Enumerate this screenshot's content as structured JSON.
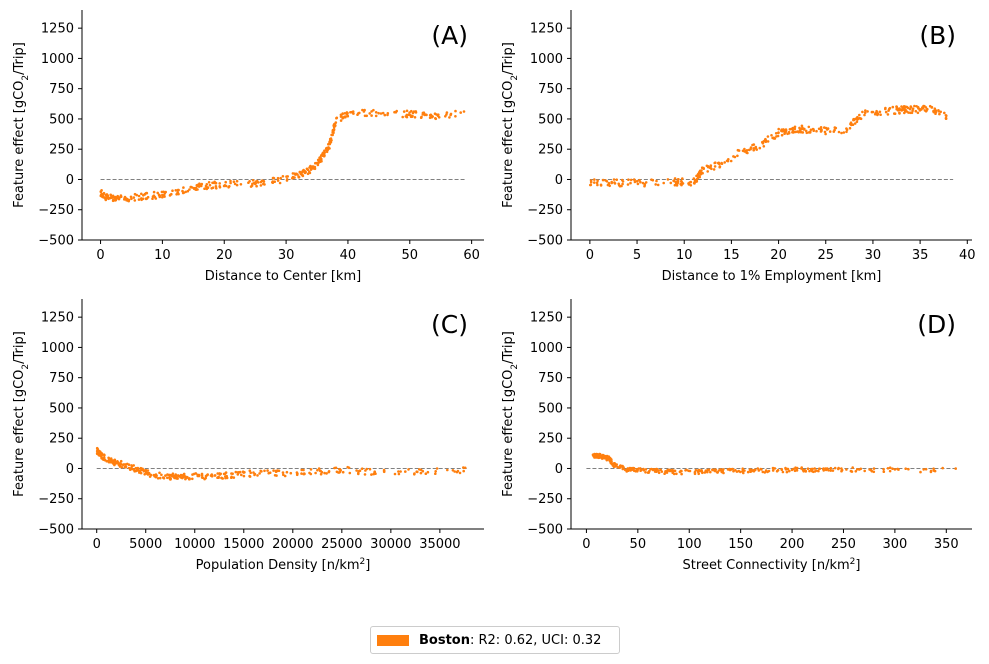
{
  "colors": {
    "series": "#ff7f0e",
    "zero_line": "#808080",
    "axis": "#000000"
  },
  "legend": {
    "city": "Boston",
    "stats": ":  R2: 0.62, UCI: 0.32"
  },
  "chart_data": [
    {
      "type": "scatter",
      "panel": "(A)",
      "xlabel": "Distance to Center [km]",
      "ylabel_parts": [
        "Feature effect [gCO",
        "2",
        "/Trip]"
      ],
      "xlim": [
        -3,
        62
      ],
      "ylim": [
        -500,
        1400
      ],
      "xticks": [
        0,
        10,
        20,
        30,
        40,
        50,
        60
      ],
      "yticks": [
        -500,
        -250,
        0,
        250,
        500,
        750,
        1000,
        1250
      ],
      "zero_line": [
        0,
        59
      ],
      "series": [
        {
          "name": "Boston",
          "trend": [
            [
              0,
              -110
            ],
            [
              1,
              -150
            ],
            [
              3,
              -160
            ],
            [
              6,
              -145
            ],
            [
              10,
              -125
            ],
            [
              13,
              -100
            ],
            [
              16,
              -55
            ],
            [
              20,
              -40
            ],
            [
              25,
              -30
            ],
            [
              28,
              -15
            ],
            [
              31,
              25
            ],
            [
              33,
              55
            ],
            [
              35,
              120
            ],
            [
              36,
              200
            ],
            [
              37,
              280
            ],
            [
              38,
              480
            ],
            [
              40,
              550
            ],
            [
              45,
              545
            ],
            [
              50,
              540
            ],
            [
              54,
              520
            ],
            [
              59,
              555
            ]
          ],
          "count": 420,
          "spread": 28
        }
      ]
    },
    {
      "type": "scatter",
      "panel": "(B)",
      "xlabel": "Distance to 1% Employment [km]",
      "ylabel_parts": [
        "Feature effect [gCO",
        "2",
        "/Trip]"
      ],
      "xlim": [
        -2,
        40.5
      ],
      "ylim": [
        -500,
        1400
      ],
      "xticks": [
        0,
        5,
        10,
        15,
        20,
        25,
        30,
        35,
        40
      ],
      "yticks": [
        -500,
        -250,
        0,
        250,
        500,
        750,
        1000,
        1250
      ],
      "zero_line": [
        0,
        38.5
      ],
      "series": [
        {
          "name": "Boston",
          "trend": [
            [
              0,
              -30
            ],
            [
              5,
              -30
            ],
            [
              9,
              -20
            ],
            [
              11,
              -20
            ],
            [
              12,
              80
            ],
            [
              14,
              130
            ],
            [
              16,
              230
            ],
            [
              18,
              280
            ],
            [
              20,
              390
            ],
            [
              22,
              420
            ],
            [
              24,
              400
            ],
            [
              27,
              410
            ],
            [
              29,
              540
            ],
            [
              32,
              570
            ],
            [
              34,
              580
            ],
            [
              36,
              580
            ],
            [
              38,
              520
            ]
          ],
          "count": 380,
          "spread": 30
        }
      ]
    },
    {
      "type": "scatter",
      "panel": "(C)",
      "xlabel_parts": [
        "Population Density [n/km",
        "2",
        "]"
      ],
      "ylabel_parts": [
        "Feature effect [gCO",
        "2",
        "/Trip]"
      ],
      "xlim": [
        -1500,
        39500
      ],
      "ylim": [
        -500,
        1400
      ],
      "xticks": [
        0,
        5000,
        10000,
        15000,
        20000,
        25000,
        30000,
        35000
      ],
      "yticks": [
        -500,
        -250,
        0,
        250,
        500,
        750,
        1000,
        1250
      ],
      "zero_line": [
        0,
        37800
      ],
      "series": [
        {
          "name": "Boston",
          "trend": [
            [
              0,
              150
            ],
            [
              500,
              100
            ],
            [
              1500,
              60
            ],
            [
              3000,
              25
            ],
            [
              4500,
              -20
            ],
            [
              6000,
              -55
            ],
            [
              8000,
              -70
            ],
            [
              10000,
              -65
            ],
            [
              13000,
              -60
            ],
            [
              16000,
              -40
            ],
            [
              20000,
              -40
            ],
            [
              25000,
              -10
            ],
            [
              29000,
              -35
            ],
            [
              37800,
              -15
            ]
          ],
          "count": 360,
          "spread": 25
        }
      ]
    },
    {
      "type": "scatter",
      "panel": "(D)",
      "xlabel_parts": [
        "Street Connectivity [n/km",
        "2",
        "]"
      ],
      "ylabel_parts": [
        "Feature effect [gCO",
        "2",
        "/Trip]"
      ],
      "xlim": [
        -15,
        375
      ],
      "ylim": [
        -500,
        1400
      ],
      "xticks": [
        0,
        50,
        100,
        150,
        200,
        250,
        300,
        350
      ],
      "yticks": [
        -500,
        -250,
        0,
        250,
        500,
        750,
        1000,
        1250
      ],
      "zero_line": [
        0,
        360
      ],
      "series": [
        {
          "name": "Boston",
          "trend": [
            [
              5,
              110
            ],
            [
              15,
              100
            ],
            [
              22,
              80
            ],
            [
              28,
              20
            ],
            [
              40,
              -10
            ],
            [
              60,
              -20
            ],
            [
              90,
              -30
            ],
            [
              120,
              -25
            ],
            [
              150,
              -20
            ],
            [
              180,
              -15
            ],
            [
              210,
              -10
            ],
            [
              240,
              -10
            ],
            [
              280,
              -10
            ],
            [
              360,
              -15
            ]
          ],
          "count": 360,
          "spread": 18
        }
      ]
    }
  ]
}
